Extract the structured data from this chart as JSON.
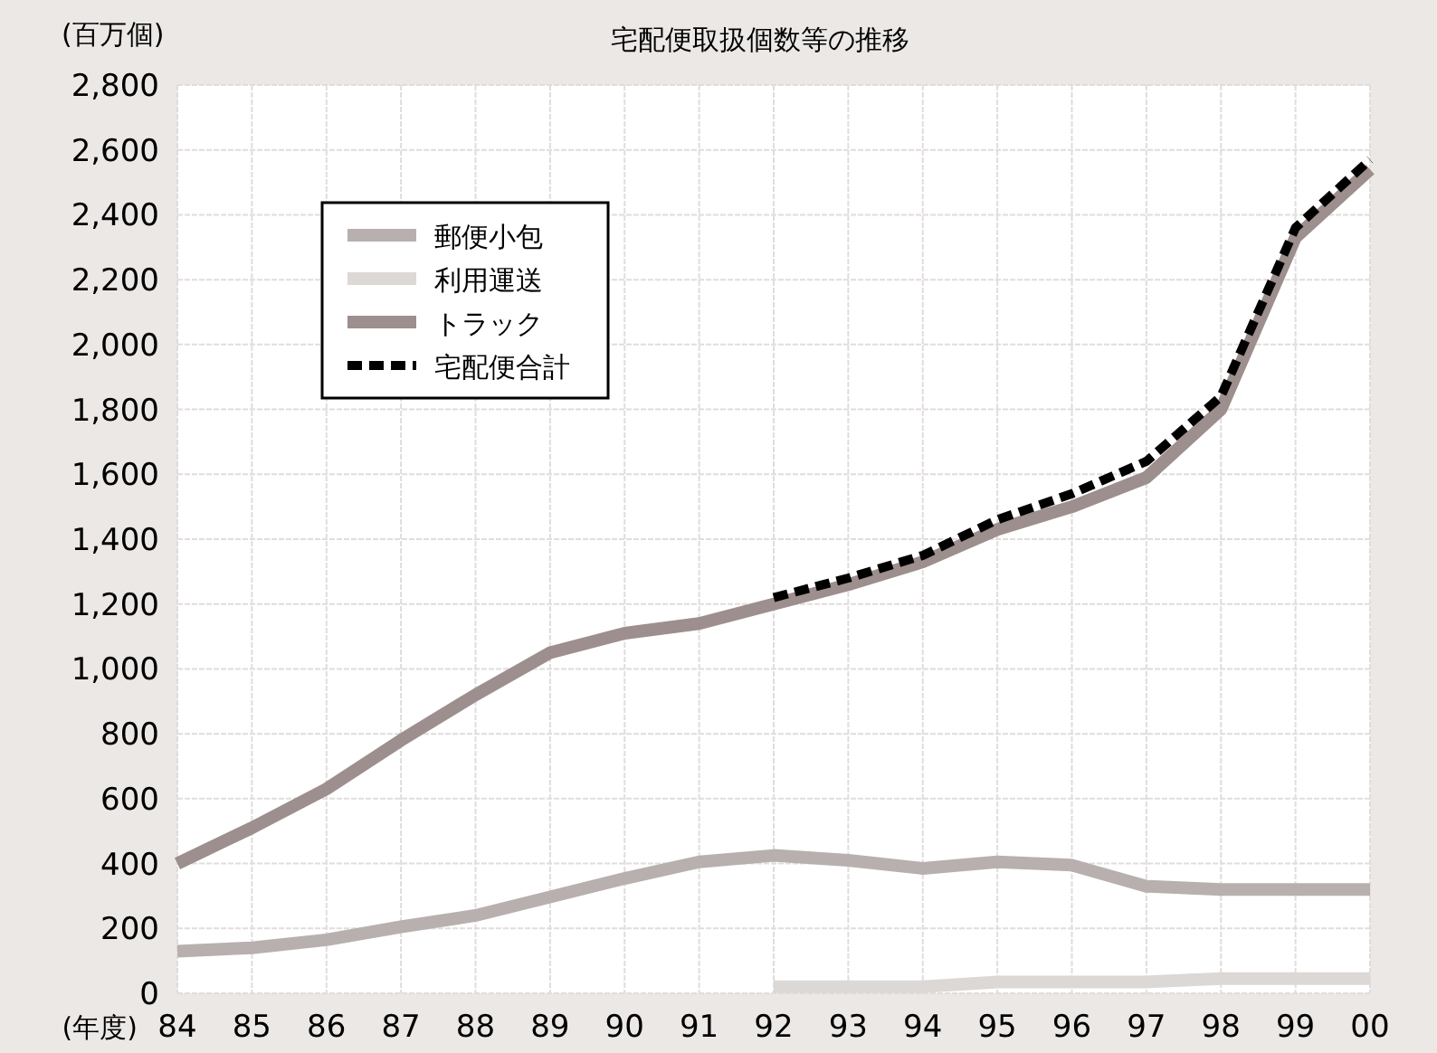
{
  "chart_data": {
    "type": "line",
    "title": "宅配便取扱個数等の推移",
    "xlabel": "(年度)",
    "ylabel": "(百万個)",
    "categories": [
      "84",
      "85",
      "86",
      "87",
      "88",
      "89",
      "90",
      "91",
      "92",
      "93",
      "94",
      "95",
      "96",
      "97",
      "98",
      "99",
      "00"
    ],
    "ylim": [
      0,
      2800
    ],
    "yticks": [
      0,
      {
        "value": 200,
        "label": "200"
      },
      {
        "value": 400,
        "label": "400"
      },
      {
        "value": 600,
        "label": "600"
      },
      {
        "value": 800,
        "label": "800"
      },
      {
        "value": 1000,
        "label": "1,000"
      },
      {
        "value": 1200,
        "label": "1,200"
      },
      {
        "value": 1400,
        "label": "1,400"
      },
      {
        "value": 1600,
        "label": "1,600"
      },
      {
        "value": 1800,
        "label": "1,800"
      },
      {
        "value": 2000,
        "label": "2,000"
      },
      {
        "value": 2200,
        "label": "2,200"
      },
      {
        "value": 2400,
        "label": "2,400"
      },
      {
        "value": 2600,
        "label": "2,600"
      },
      {
        "value": 2800,
        "label": "2,800"
      }
    ],
    "grid": true,
    "legend": "top left",
    "marker": "none",
    "series": [
      {
        "name": "郵便小包",
        "color": "#b8b0ae",
        "line_style": "solid",
        "values": [
          130,
          140,
          165,
          205,
          240,
          297,
          354,
          405,
          425,
          410,
          385,
          405,
          395,
          330,
          320,
          320,
          320
        ]
      },
      {
        "name": "利用運送",
        "color": "#dcd8d6",
        "line_style": "solid",
        "values": [
          null,
          null,
          null,
          null,
          null,
          null,
          null,
          null,
          20,
          20,
          20,
          35,
          35,
          35,
          45,
          45,
          45
        ]
      },
      {
        "name": "トラック",
        "color": "#9c8f8d",
        "line_style": "solid",
        "values": [
          400,
          510,
          630,
          780,
          920,
          1050,
          1110,
          1140,
          1200,
          1260,
          1330,
          1430,
          1500,
          1590,
          1800,
          2330,
          2540
        ]
      },
      {
        "name": "宅配便合計",
        "color": "#000000",
        "line_style": "dashed",
        "values": [
          null,
          null,
          null,
          null,
          null,
          null,
          null,
          null,
          1220,
          1280,
          1350,
          1460,
          1540,
          1640,
          1840,
          2360,
          2570
        ]
      }
    ]
  }
}
